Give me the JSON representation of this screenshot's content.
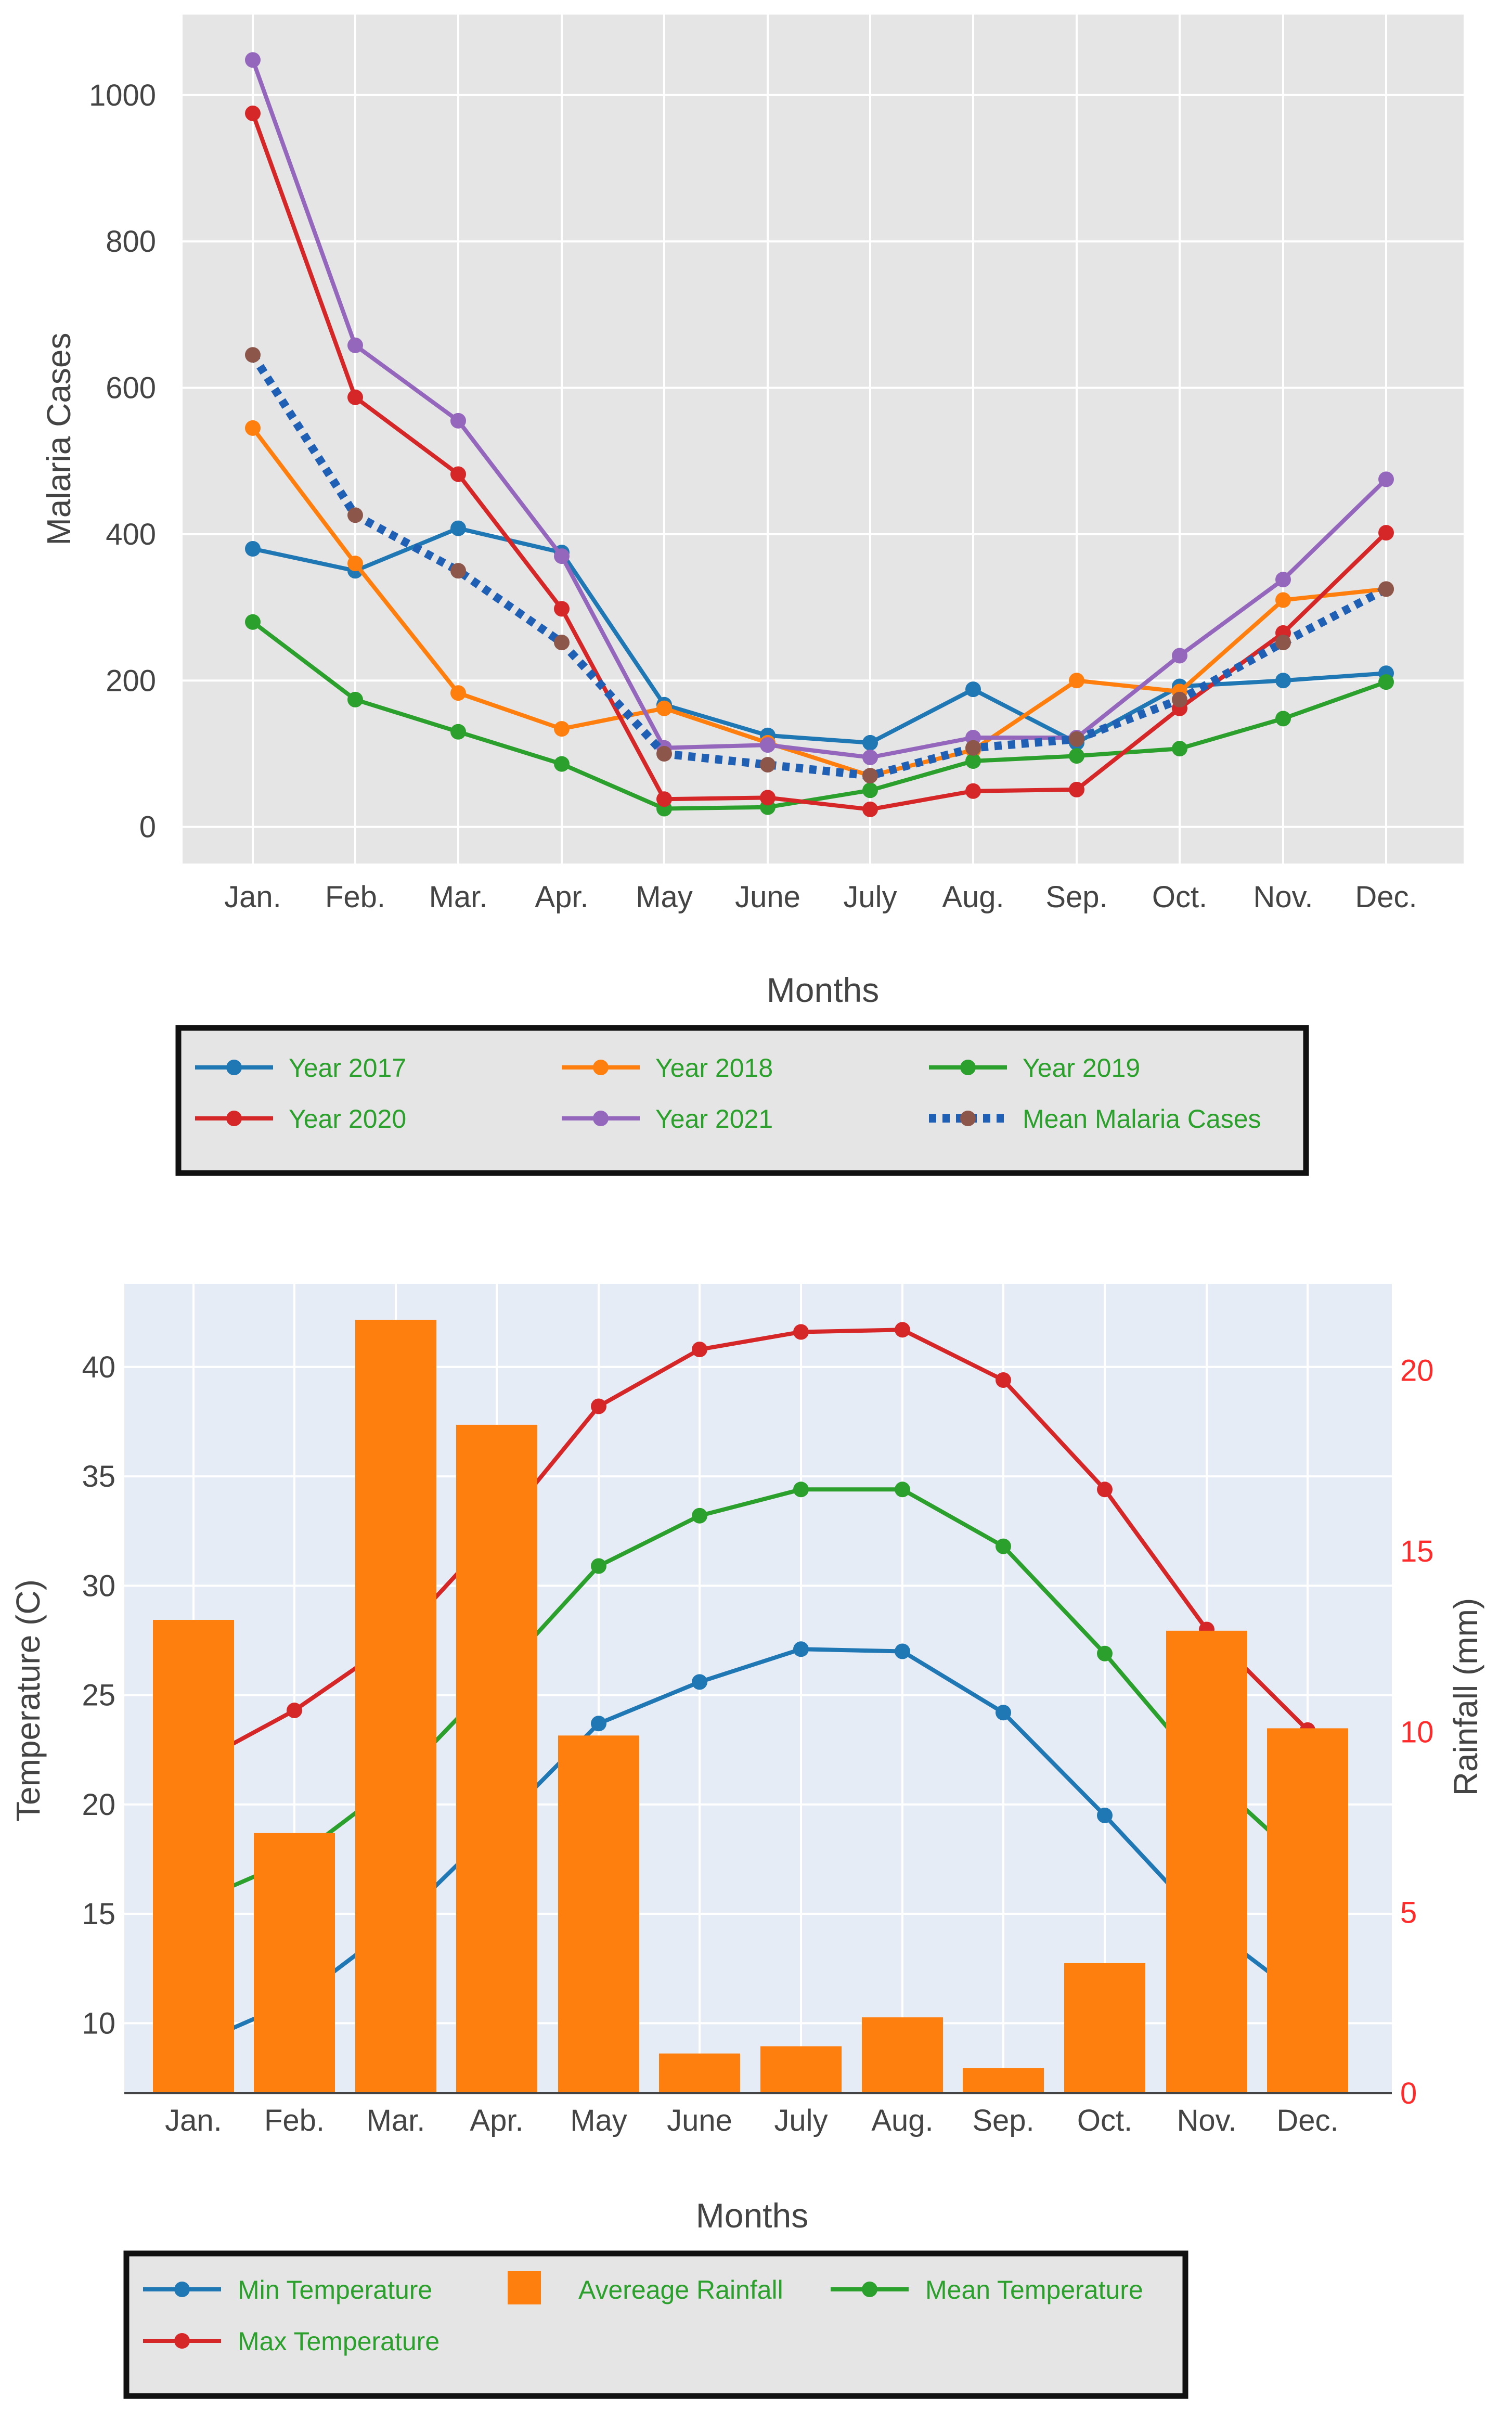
{
  "chart_data": [
    {
      "type": "line",
      "title": "",
      "xlabel": "Months",
      "ylabel": "Malaria Cases",
      "categories": [
        "Jan.",
        "Feb.",
        "Mar.",
        "Apr.",
        "May",
        "June",
        "July",
        "Aug.",
        "Sep.",
        "Oct.",
        "Nov.",
        "Dec."
      ],
      "ylim": [
        -50,
        1110
      ],
      "yticks": [
        0,
        200,
        400,
        600,
        800,
        1000
      ],
      "grid": true,
      "legend_position": "bottom",
      "series": [
        {
          "name": "Year 2017",
          "color": "#1f77b4",
          "dash": false,
          "values": [
            380,
            350,
            408,
            375,
            167,
            125,
            115,
            188,
            115,
            192,
            200,
            210
          ]
        },
        {
          "name": "Year 2018",
          "color": "#ff7f0e",
          "dash": false,
          "values": [
            545,
            360,
            183,
            134,
            162,
            115,
            70,
            105,
            200,
            185,
            310,
            325
          ]
        },
        {
          "name": "Year 2019",
          "color": "#2ca02c",
          "dash": false,
          "values": [
            280,
            174,
            130,
            86,
            25,
            27,
            50,
            90,
            97,
            107,
            148,
            198
          ]
        },
        {
          "name": "Year 2020",
          "color": "#d62728",
          "dash": false,
          "values": [
            975,
            587,
            482,
            298,
            38,
            40,
            24,
            49,
            51,
            162,
            265,
            402
          ]
        },
        {
          "name": "Year 2021",
          "color": "#9467bd",
          "dash": false,
          "values": [
            1048,
            658,
            555,
            370,
            108,
            112,
            95,
            122,
            122,
            234,
            338,
            475
          ]
        },
        {
          "name": "Mean Malaria Cases",
          "color": "#1f5fb4",
          "marker_color": "#8c564b",
          "dash": true,
          "values": [
            645,
            426,
            350,
            252,
            100,
            85,
            70,
            108,
            120,
            174,
            252,
            325
          ]
        }
      ]
    },
    {
      "type": "bar",
      "title": "",
      "xlabel": "Months",
      "ylabel": "Temperature (C)",
      "y2label": "Rainfall (mm)",
      "categories": [
        "Jan.",
        "Feb.",
        "Mar.",
        "Apr.",
        "May",
        "June",
        "July",
        "Aug.",
        "Sep.",
        "Oct.",
        "Nov.",
        "Dec."
      ],
      "ylim": [
        6.8,
        43.8
      ],
      "yticks": [
        10,
        15,
        20,
        25,
        30,
        35,
        40
      ],
      "y2lim": [
        0,
        22.4
      ],
      "y2ticks": [
        0,
        5,
        10,
        15,
        20
      ],
      "y2color": "#ff2a2a",
      "grid": true,
      "legend_position": "bottom",
      "bars": {
        "name": "Avereage Rainfall",
        "color": "#ff7f0e",
        "axis": "y2",
        "values": [
          13.1,
          7.2,
          21.4,
          18.5,
          9.9,
          1.1,
          1.3,
          2.1,
          0.7,
          3.6,
          12.8,
          10.1
        ]
      },
      "series": [
        {
          "name": "Min Temperature",
          "color": "#1f77b4",
          "values": [
            9.0,
            11.0,
            14.5,
            19.0,
            23.7,
            25.6,
            27.1,
            27.0,
            24.2,
            19.5,
            14.5,
            11.0
          ]
        },
        {
          "name": "Max Temperature",
          "color": "#d62728",
          "values": [
            21.8,
            24.3,
            27.5,
            32.5,
            38.2,
            40.8,
            41.6,
            41.7,
            39.4,
            34.4,
            28.0,
            23.4
          ]
        },
        {
          "name": "Mean Temperature",
          "color": "#2ca02c",
          "values": [
            15.5,
            17.5,
            21.0,
            25.8,
            30.9,
            33.2,
            34.4,
            34.4,
            31.8,
            26.9,
            21.4,
            17.2
          ]
        }
      ]
    }
  ]
}
